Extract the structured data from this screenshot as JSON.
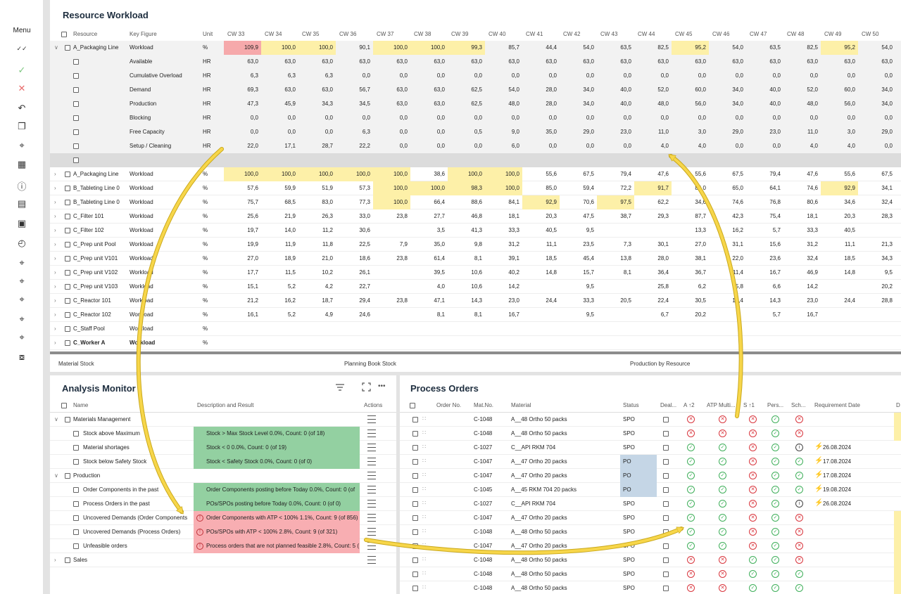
{
  "left_bar": {
    "menu_label": "Menu",
    "icons": [
      "double-check-icon",
      "check-icon",
      "close-icon",
      "undo-icon",
      "copy-icon",
      "pin-icon",
      "calendar-icon",
      "info-box-icon",
      "book-icon",
      "layers-icon",
      "clock-icon",
      "target-icon",
      "target-add-icon",
      "target-edit-icon",
      "target-share-icon",
      "target-alt-icon",
      "focus-icon"
    ]
  },
  "workload": {
    "title": "Resource Workload",
    "columns": {
      "resource": "Resource",
      "key_figure": "Key Figure",
      "unit": "Unit"
    },
    "weeks": [
      "CW 33",
      "CW 34",
      "CW 35",
      "CW 36",
      "CW 37",
      "CW 38",
      "CW 39",
      "CW 40",
      "CW 41",
      "CW 42",
      "CW 43",
      "CW 44",
      "CW 45",
      "CW 46",
      "CW 47",
      "CW 48",
      "CW 49",
      "CW 50"
    ],
    "expanded": {
      "resource": "A_Packaging Line",
      "rows": [
        {
          "kf": "Workload",
          "unit": "%",
          "values": [
            "109,9",
            "100,0",
            "100,0",
            "90,1",
            "100,0",
            "100,0",
            "99,3",
            "85,7",
            "44,4",
            "54,0",
            "63,5",
            "82,5",
            "95,2",
            "54,0",
            "63,5",
            "82,5",
            "95,2",
            "54,0"
          ],
          "hl": [
            "red",
            "yellow",
            "yellow",
            "",
            "yellow",
            "yellow",
            "yellow",
            "",
            "",
            "",
            "",
            "",
            "yellow",
            "",
            "",
            "",
            "yellow",
            ""
          ]
        },
        {
          "kf": "Available",
          "unit": "HR",
          "values": [
            "63,0",
            "63,0",
            "63,0",
            "63,0",
            "63,0",
            "63,0",
            "63,0",
            "63,0",
            "63,0",
            "63,0",
            "63,0",
            "63,0",
            "63,0",
            "63,0",
            "63,0",
            "63,0",
            "63,0",
            "63,0"
          ]
        },
        {
          "kf": "Cumulative Overload",
          "unit": "HR",
          "values": [
            "6,3",
            "6,3",
            "6,3",
            "0,0",
            "0,0",
            "0,0",
            "0,0",
            "0,0",
            "0,0",
            "0,0",
            "0,0",
            "0,0",
            "0,0",
            "0,0",
            "0,0",
            "0,0",
            "0,0",
            "0,0"
          ]
        },
        {
          "kf": "Demand",
          "unit": "HR",
          "values": [
            "69,3",
            "63,0",
            "63,0",
            "56,7",
            "63,0",
            "63,0",
            "62,5",
            "54,0",
            "28,0",
            "34,0",
            "40,0",
            "52,0",
            "60,0",
            "34,0",
            "40,0",
            "52,0",
            "60,0",
            "34,0"
          ]
        },
        {
          "kf": "Production",
          "unit": "HR",
          "values": [
            "47,3",
            "45,9",
            "34,3",
            "34,5",
            "63,0",
            "63,0",
            "62,5",
            "48,0",
            "28,0",
            "34,0",
            "40,0",
            "48,0",
            "56,0",
            "34,0",
            "40,0",
            "48,0",
            "56,0",
            "34,0"
          ]
        },
        {
          "kf": "Blocking",
          "unit": "HR",
          "values": [
            "0,0",
            "0,0",
            "0,0",
            "0,0",
            "0,0",
            "0,0",
            "0,0",
            "0,0",
            "0,0",
            "0,0",
            "0,0",
            "0,0",
            "0,0",
            "0,0",
            "0,0",
            "0,0",
            "0,0",
            "0,0"
          ]
        },
        {
          "kf": "Free Capacity",
          "unit": "HR",
          "values": [
            "0,0",
            "0,0",
            "0,0",
            "6,3",
            "0,0",
            "0,0",
            "0,5",
            "9,0",
            "35,0",
            "29,0",
            "23,0",
            "11,0",
            "3,0",
            "29,0",
            "23,0",
            "11,0",
            "3,0",
            "29,0"
          ]
        },
        {
          "kf": "Setup / Cleaning",
          "unit": "HR",
          "values": [
            "22,0",
            "17,1",
            "28,7",
            "22,2",
            "0,0",
            "0,0",
            "0,0",
            "6,0",
            "0,0",
            "0,0",
            "0,0",
            "4,0",
            "4,0",
            "0,0",
            "0,0",
            "4,0",
            "4,0",
            "0,0"
          ]
        }
      ]
    },
    "resources": [
      {
        "name": "A_Packaging Line",
        "kf": "Workload",
        "unit": "%",
        "values": [
          "100,0",
          "100,0",
          "100,0",
          "100,0",
          "100,0",
          "38,6",
          "100,0",
          "100,0",
          "55,6",
          "67,5",
          "79,4",
          "47,6",
          "55,6",
          "67,5",
          "79,4",
          "47,6",
          "55,6",
          "67,5"
        ],
        "hl": [
          "yellow",
          "yellow",
          "yellow",
          "yellow",
          "yellow",
          "",
          "yellow",
          "yellow",
          "",
          "",
          "",
          "",
          "",
          "",
          "",
          "",
          "",
          ""
        ]
      },
      {
        "name": "B_Tableting Line 0",
        "kf": "Workload",
        "unit": "%",
        "values": [
          "57,6",
          "59,9",
          "51,9",
          "57,3",
          "100,0",
          "100,0",
          "98,3",
          "100,0",
          "85,0",
          "59,4",
          "72,2",
          "91,7",
          "84,0",
          "65,0",
          "64,1",
          "74,6",
          "92,9",
          "34,1"
        ],
        "hl": [
          "",
          "",
          "",
          "",
          "yellow",
          "yellow",
          "yellow",
          "yellow",
          "",
          "",
          "",
          "yellow",
          "",
          "",
          "",
          "",
          "yellow",
          ""
        ]
      },
      {
        "name": "B_Tableting Line 0",
        "kf": "Workload",
        "unit": "%",
        "values": [
          "75,7",
          "68,5",
          "83,0",
          "77,3",
          "100,0",
          "66,4",
          "88,6",
          "84,1",
          "92,9",
          "70,6",
          "97,5",
          "62,2",
          "34,6",
          "74,6",
          "76,8",
          "80,6",
          "34,6",
          "32,4"
        ],
        "hl": [
          "",
          "",
          "",
          "",
          "yellow",
          "",
          "",
          "",
          "yellow",
          "",
          "yellow",
          "",
          "",
          "",
          "",
          "",
          "",
          ""
        ]
      },
      {
        "name": "C_Filter 101",
        "kf": "Workload",
        "unit": "%",
        "values": [
          "25,6",
          "21,9",
          "26,3",
          "33,0",
          "23,8",
          "27,7",
          "46,8",
          "18,1",
          "20,3",
          "47,5",
          "38,7",
          "29,3",
          "87,7",
          "42,3",
          "75,4",
          "18,1",
          "20,3",
          "28,3"
        ]
      },
      {
        "name": "C_Filter 102",
        "kf": "Workload",
        "unit": "%",
        "values": [
          "19,7",
          "14,0",
          "11,2",
          "30,6",
          "",
          "3,5",
          "41,3",
          "33,3",
          "40,5",
          "9,5",
          "",
          "",
          "13,3",
          "16,2",
          "5,7",
          "33,3",
          "40,5",
          ""
        ]
      },
      {
        "name": "C_Prep unit Pool",
        "kf": "Workload",
        "unit": "%",
        "values": [
          "19,9",
          "11,9",
          "11,8",
          "22,5",
          "7,9",
          "35,0",
          "9,8",
          "31,2",
          "11,1",
          "23,5",
          "7,3",
          "30,1",
          "27,0",
          "31,1",
          "15,6",
          "31,2",
          "11,1",
          "21,3"
        ]
      },
      {
        "name": "C_Prep unit V101",
        "kf": "Workload",
        "unit": "%",
        "values": [
          "27,0",
          "18,9",
          "21,0",
          "18,6",
          "23,8",
          "61,4",
          "8,1",
          "39,1",
          "18,5",
          "45,4",
          "13,8",
          "28,0",
          "38,1",
          "22,0",
          "23,6",
          "32,4",
          "18,5",
          "34,3"
        ]
      },
      {
        "name": "C_Prep unit V102",
        "kf": "Workload",
        "unit": "%",
        "values": [
          "17,7",
          "11,5",
          "10,2",
          "26,1",
          "",
          "39,5",
          "10,6",
          "40,2",
          "14,8",
          "15,7",
          "8,1",
          "36,4",
          "36,7",
          "11,4",
          "16,7",
          "46,9",
          "14,8",
          "9,5"
        ]
      },
      {
        "name": "C_Prep unit V103",
        "kf": "Workload",
        "unit": "%",
        "values": [
          "15,1",
          "5,2",
          "4,2",
          "22,7",
          "",
          "4,0",
          "10,6",
          "14,2",
          "",
          "9,5",
          "",
          "25,8",
          "6,2",
          "5,8",
          "6,6",
          "14,2",
          "",
          "20,2"
        ]
      },
      {
        "name": "C_Reactor 101",
        "kf": "Workload",
        "unit": "%",
        "values": [
          "21,2",
          "16,2",
          "18,7",
          "29,4",
          "23,8",
          "47,1",
          "14,3",
          "23,0",
          "24,4",
          "33,3",
          "20,5",
          "22,4",
          "30,5",
          "14,4",
          "14,3",
          "23,0",
          "24,4",
          "28,8"
        ]
      },
      {
        "name": "C_Reactor 102",
        "kf": "Workload",
        "unit": "%",
        "values": [
          "16,1",
          "5,2",
          "4,9",
          "24,6",
          "",
          "8,1",
          "8,1",
          "16,7",
          "",
          "9,5",
          "",
          "6,7",
          "20,2",
          "",
          "5,7",
          "16,7",
          "",
          ""
        ]
      },
      {
        "name": "C_Staff Pool",
        "kf": "Workload",
        "unit": "%",
        "values": []
      },
      {
        "name": "C_Worker A",
        "kf": "Workload",
        "unit": "%",
        "values": [],
        "bold": true
      }
    ]
  },
  "tabs": [
    "Material Stock",
    "Planning Book Stock",
    "Production by Resource"
  ],
  "analysis": {
    "title": "Analysis Monitor",
    "col_name": "Name",
    "col_desc": "Description and Result",
    "col_actions": "Actions",
    "rows": [
      {
        "name": "Materials Management",
        "group": true,
        "desc": "",
        "status": ""
      },
      {
        "name": "Stock above Maximum",
        "desc": "Stock > Max Stock Level 0.0%, Count: 0 (of 18)",
        "status": "green"
      },
      {
        "name": "Material shortages",
        "desc": "Stock < 0 0.0%, Count: 0 (of 19)",
        "status": "green"
      },
      {
        "name": "Stock below Safety Stock",
        "desc": "Stock < Safety Stock 0.0%, Count: 0 (of 0)",
        "status": "green"
      },
      {
        "name": "Production",
        "group": true,
        "desc": "",
        "status": ""
      },
      {
        "name": "Order Components in the past",
        "desc": "Order Components posting before Today 0.0%, Count: 0 (of",
        "status": "green"
      },
      {
        "name": "Process Orders in the past",
        "desc": "POs/SPOs posting before Today 0.0%, Count: 0 (of 0)",
        "status": "green"
      },
      {
        "name": "Uncovered Demands (Order Components",
        "desc": "Order Components with ATP < 100% 1.1%, Count: 9 (of 856)",
        "status": "red"
      },
      {
        "name": "Uncovered Demands (Process Orders)",
        "desc": "POs/SPOs with ATP < 100% 2.8%, Count: 9 (of 321)",
        "status": "red"
      },
      {
        "name": "Unfeasible orders",
        "desc": "Process orders that are not planned feasible 2.8%, Count: 5 (",
        "status": "red"
      },
      {
        "name": "Sales",
        "group": true,
        "collapsed": true,
        "desc": "",
        "status": ""
      }
    ]
  },
  "process_orders": {
    "title": "Process Orders",
    "headers": [
      "Order No.",
      "Mat.No.",
      "Material",
      "Status",
      "Deal...",
      "A ↑2",
      "ATP Multi...",
      "S ↑1",
      "Pers...",
      "Sch...",
      "Requirement Date",
      "D"
    ],
    "rows": [
      {
        "mat": "C-1048",
        "material": "A__48 Ortho 50 packs",
        "status": "SPO",
        "icons": [
          "err",
          "err",
          "err",
          "ok",
          "err"
        ],
        "date": ""
      },
      {
        "mat": "C-1048",
        "material": "A__48 Ortho 50 packs",
        "status": "SPO",
        "icons": [
          "err",
          "err",
          "err",
          "ok",
          "err"
        ],
        "date": ""
      },
      {
        "mat": "C-1027",
        "material": "C__API RKM 704",
        "status": "SPO",
        "icons": [
          "ok",
          "ok",
          "err",
          "ok",
          "inf"
        ],
        "date": "26.08.2024"
      },
      {
        "mat": "C-1047",
        "material": "A__47 Ortho 20 packs",
        "status": "PO",
        "icons": [
          "ok",
          "ok",
          "err",
          "ok",
          "ok"
        ],
        "date": "17.08.2024"
      },
      {
        "mat": "C-1047",
        "material": "A__47 Ortho 20 packs",
        "status": "PO",
        "icons": [
          "ok",
          "ok",
          "err",
          "ok",
          "ok"
        ],
        "date": "17.08.2024"
      },
      {
        "mat": "C-1045",
        "material": "A__45 RKM 704 20 packs",
        "status": "PO",
        "icons": [
          "ok",
          "ok",
          "err",
          "ok",
          "ok"
        ],
        "date": "19.08.2024"
      },
      {
        "mat": "C-1027",
        "material": "C__API RKM 704",
        "status": "SPO",
        "icons": [
          "ok",
          "ok",
          "err",
          "ok",
          "inf"
        ],
        "date": "26.08.2024"
      },
      {
        "mat": "C-1047",
        "material": "A__47 Ortho 20 packs",
        "status": "SPO",
        "icons": [
          "ok",
          "ok",
          "err",
          "ok",
          "err"
        ],
        "date": ""
      },
      {
        "mat": "C-1048",
        "material": "A__48 Ortho 50 packs",
        "status": "SPO",
        "icons": [
          "ok",
          "ok",
          "err",
          "ok",
          "err"
        ],
        "date": ""
      },
      {
        "mat": "C-1047",
        "material": "A__47 Ortho 20 packs",
        "status": "SPO",
        "icons": [
          "ok",
          "ok",
          "err",
          "ok",
          "err"
        ],
        "date": ""
      },
      {
        "mat": "C-1048",
        "material": "A__48 Ortho 50 packs",
        "status": "SPO",
        "icons": [
          "err",
          "err",
          "ok",
          "ok",
          "err"
        ],
        "date": ""
      },
      {
        "mat": "C-1048",
        "material": "A__48 Ortho 50 packs",
        "status": "SPO",
        "icons": [
          "err",
          "err",
          "ok",
          "ok",
          "ok"
        ],
        "date": ""
      },
      {
        "mat": "C-1048",
        "material": "A__48 Ortho 50 packs",
        "status": "SPO",
        "icons": [
          "err",
          "err",
          "ok",
          "ok",
          "ok"
        ],
        "date": ""
      }
    ]
  },
  "colors": {
    "red_cell": "#f6a9ab",
    "yellow_cell": "#fdf0a8",
    "green_cell": "#93d0a1",
    "red_desc": "#f8aeb2",
    "po_cell": "#c5d6e6",
    "arrow": "#f7d64a"
  }
}
